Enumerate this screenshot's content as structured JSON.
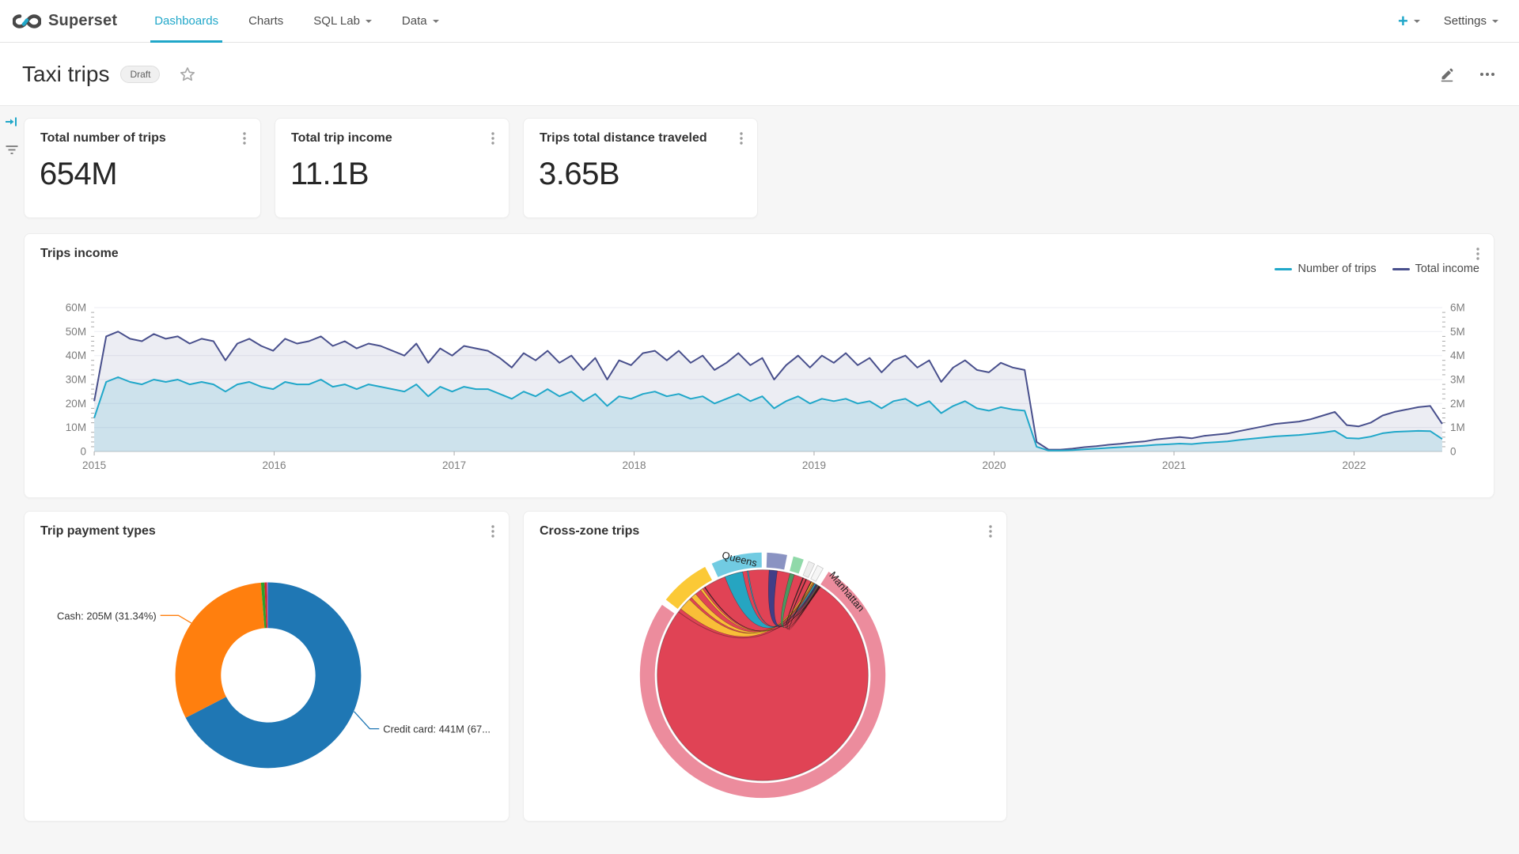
{
  "nav": {
    "brand": "Superset",
    "items": [
      {
        "label": "Dashboards",
        "active": true,
        "caret": false
      },
      {
        "label": "Charts",
        "active": false,
        "caret": false
      },
      {
        "label": "SQL Lab",
        "active": false,
        "caret": true
      },
      {
        "label": "Data",
        "active": false,
        "caret": true
      }
    ],
    "plus_label": "+",
    "settings_label": "Settings"
  },
  "header": {
    "title": "Taxi trips",
    "badge": "Draft"
  },
  "icons": {
    "edit-icon": "pencil",
    "more-icon": "horizontal-ellipsis",
    "star-icon": "star-outline",
    "kebab-icon": "vertical-ellipsis",
    "expand-filter-icon": "arrow-to-bar",
    "filter-icon": "stacked-lines",
    "caret-icon": "triangle-down"
  },
  "kpis": [
    {
      "title": "Total number of trips",
      "value": "654M"
    },
    {
      "title": "Total trip income",
      "value": "11.1B"
    },
    {
      "title": "Trips total distance traveled",
      "value": "3.65B"
    }
  ],
  "chart_data": [
    {
      "type": "line",
      "title": "Trips income",
      "x_start": 2015,
      "x_end": 2022.49,
      "x_ticks": [
        2015,
        2016,
        2017,
        2018,
        2019,
        2020,
        2021,
        2022
      ],
      "grid": true,
      "legend_position": "top-right",
      "y_axis_left": {
        "ticks": [
          "0",
          "10M",
          "20M",
          "30M",
          "40M",
          "50M",
          "60M"
        ],
        "max": 60
      },
      "y_axis_right": {
        "ticks": [
          "0",
          "1M",
          "2M",
          "3M",
          "4M",
          "5M",
          "6M"
        ],
        "max": 6
      },
      "series": [
        {
          "name": "Number of trips",
          "axis": "right",
          "color": "#20A7C9",
          "fill": "rgba(32,167,201,0.15)",
          "values": [
            1.4,
            2.9,
            3.1,
            2.9,
            2.8,
            3.0,
            2.9,
            3.0,
            2.8,
            2.9,
            2.8,
            2.5,
            2.8,
            2.9,
            2.7,
            2.6,
            2.9,
            2.8,
            2.8,
            3.0,
            2.7,
            2.8,
            2.6,
            2.8,
            2.7,
            2.6,
            2.5,
            2.8,
            2.3,
            2.7,
            2.5,
            2.7,
            2.6,
            2.6,
            2.4,
            2.2,
            2.5,
            2.3,
            2.6,
            2.3,
            2.5,
            2.1,
            2.4,
            1.9,
            2.3,
            2.2,
            2.4,
            2.5,
            2.3,
            2.4,
            2.2,
            2.3,
            2.0,
            2.2,
            2.4,
            2.1,
            2.3,
            1.8,
            2.1,
            2.3,
            2.0,
            2.2,
            2.1,
            2.2,
            2.0,
            2.1,
            1.8,
            2.1,
            2.2,
            1.9,
            2.1,
            1.6,
            1.9,
            2.1,
            1.8,
            1.7,
            1.85,
            1.75,
            1.7,
            0.2,
            0.04,
            0.04,
            0.06,
            0.09,
            0.12,
            0.15,
            0.18,
            0.21,
            0.24,
            0.28,
            0.3,
            0.33,
            0.31,
            0.36,
            0.39,
            0.42,
            0.48,
            0.53,
            0.58,
            0.63,
            0.66,
            0.69,
            0.74,
            0.79,
            0.86,
            0.56,
            0.54,
            0.62,
            0.76,
            0.82,
            0.84,
            0.86,
            0.85,
            0.52
          ]
        },
        {
          "name": "Total income",
          "axis": "left",
          "color": "#484F8C",
          "fill": "rgba(72,79,140,0.10)",
          "values": [
            21,
            48,
            50,
            47,
            46,
            49,
            47,
            48,
            45,
            47,
            46,
            38,
            45,
            47,
            44,
            42,
            47,
            45,
            46,
            48,
            44,
            46,
            43,
            45,
            44,
            42,
            40,
            45,
            37,
            43,
            40,
            44,
            43,
            42,
            39,
            35,
            41,
            38,
            42,
            37,
            40,
            34,
            39,
            30,
            38,
            36,
            41,
            42,
            38,
            42,
            37,
            40,
            34,
            37,
            41,
            36,
            39,
            30,
            36,
            40,
            35,
            40,
            37,
            41,
            36,
            39,
            33,
            38,
            40,
            35,
            38,
            29,
            35,
            38,
            34,
            33,
            37,
            35,
            34,
            4,
            0.8,
            0.8,
            1.2,
            1.8,
            2.2,
            2.8,
            3.2,
            3.8,
            4.2,
            5,
            5.5,
            6,
            5.5,
            6.5,
            7,
            7.5,
            8.5,
            9.5,
            10.5,
            11.5,
            12,
            12.5,
            13.5,
            15,
            16.5,
            11,
            10.5,
            12,
            15,
            16.5,
            17.5,
            18.5,
            19,
            11.5
          ]
        }
      ]
    },
    {
      "type": "pie",
      "title": "Trip payment types",
      "donut": true,
      "slices": [
        {
          "pct": 67.42,
          "color": "#1F77B4",
          "callout": "Credit card: 441M (67..."
        },
        {
          "pct": 31.34,
          "color": "#FF7F0E",
          "callout": "Cash: 205M (31.34%)"
        },
        {
          "pct": 0.6,
          "color": "#2CA02C",
          "callout": ""
        },
        {
          "pct": 0.4,
          "color": "#D62728",
          "callout": ""
        },
        {
          "pct": 0.24,
          "color": "#9467BD",
          "callout": ""
        }
      ]
    },
    {
      "type": "chord",
      "title": "Cross-zone trips",
      "self_chord_color": "#E04355",
      "segments": [
        {
          "label": "",
          "color": "#FBC936",
          "start": -52,
          "end": -28
        },
        {
          "label": "Queens",
          "color": "#71CBE2",
          "start": -24.5,
          "end": -0.5,
          "label_angle": -12,
          "label_rotate": 14
        },
        {
          "label": "",
          "color": "#8A93C2",
          "start": 2,
          "end": 11.5
        },
        {
          "label": "",
          "color": "#90D9A9",
          "start": 14.5,
          "end": 19.5
        },
        {
          "label": "",
          "color": "#EDEDED",
          "start": 22,
          "end": 25,
          "stroke": "#C9C9C9"
        },
        {
          "label": "",
          "color": "#F6F6F6",
          "start": 26.5,
          "end": 29.5,
          "stroke": "#C9C9C9"
        },
        {
          "label": "Manhattan",
          "color": "#EC8C9D",
          "start": 32.5,
          "end": 305,
          "label_angle": 45,
          "label_rotate": 50
        }
      ],
      "ribbons": [
        {
          "color": "#FBC936",
          "a0": -51,
          "a1": -44,
          "b0": 27.6,
          "b1": 28.4
        },
        {
          "color": "#FBC936",
          "a0": -42.5,
          "a1": -39.5,
          "b0": 28.6,
          "b1": 29.0
        },
        {
          "color": "#FBC936",
          "a0": -36,
          "a1": -34.8,
          "b0": 29.1,
          "b1": 29.3
        },
        {
          "color": "#16AECB",
          "a0": -21,
          "a1": -11,
          "b0": 29.5,
          "b1": 30.3
        },
        {
          "color": "#16AECB",
          "a0": -8.5,
          "a1": -7.8,
          "b0": 30.4,
          "b1": 30.6
        },
        {
          "color": "#333E8C",
          "a0": 3.5,
          "a1": 8,
          "b0": 30.7,
          "b1": 31.3
        },
        {
          "color": "#3E9E63",
          "a0": 15,
          "a1": 17.5,
          "b0": 31.5,
          "b1": 31.9
        },
        {
          "color": "#2B2B2B",
          "a0": 22.3,
          "a1": 22.8,
          "b0": 32.1,
          "b1": 32.3
        },
        {
          "color": "#2B2B2B",
          "a0": 24.2,
          "a1": 24.6,
          "b0": 32.4,
          "b1": 32.6
        },
        {
          "color": "#2B2B2B",
          "a0": 27.2,
          "a1": 27.6,
          "b0": 32.7,
          "b1": 32.9
        },
        {
          "color": "#2B2B2B",
          "a0": -33.5,
          "a1": -33.1,
          "b0": 33.0,
          "b1": 33.2
        }
      ]
    }
  ]
}
